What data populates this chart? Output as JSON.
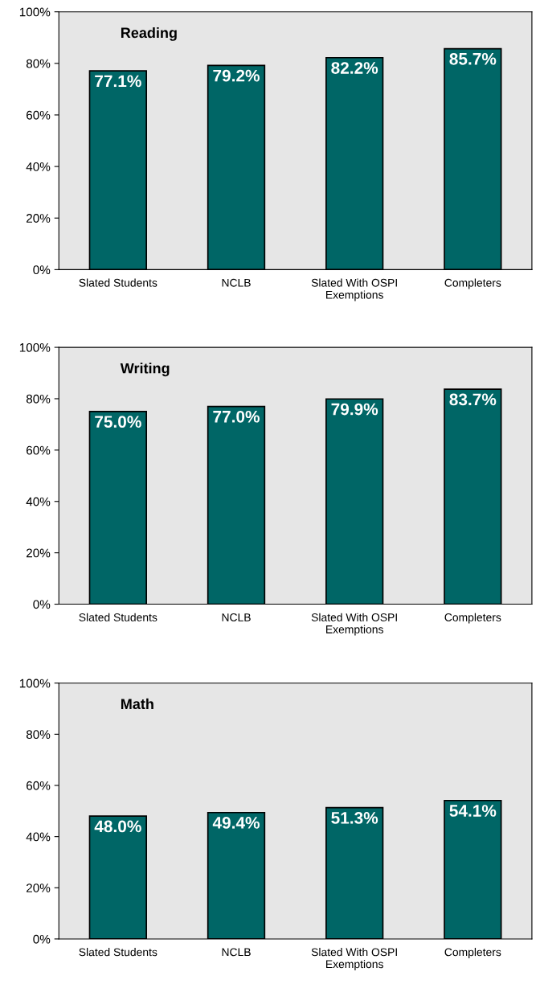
{
  "chart_data": [
    {
      "type": "bar",
      "title": "Reading",
      "categories": [
        "Slated Students",
        "NCLB",
        "Slated With OSPI\nExemptions",
        "Completers"
      ],
      "values": [
        77.1,
        79.2,
        82.2,
        85.7
      ],
      "value_labels": [
        "77.1%",
        "79.2%",
        "82.2%",
        "85.7%"
      ],
      "color": "#006666",
      "ylim": [
        0,
        100
      ],
      "yticks": [
        {
          "value": 0,
          "label": "0%"
        },
        {
          "value": 20,
          "label": "20%"
        },
        {
          "value": 40,
          "label": "40%"
        },
        {
          "value": 60,
          "label": "60%"
        },
        {
          "value": 80,
          "label": "80%"
        },
        {
          "value": 100,
          "label": "100%"
        }
      ]
    },
    {
      "type": "bar",
      "title": "Writing",
      "categories": [
        "Slated Students",
        "NCLB",
        "Slated With OSPI\nExemptions",
        "Completers"
      ],
      "values": [
        75.0,
        77.0,
        79.9,
        83.7
      ],
      "value_labels": [
        "75.0%",
        "77.0%",
        "79.9%",
        "83.7%"
      ],
      "color": "#006666",
      "ylim": [
        0,
        100
      ],
      "yticks": [
        {
          "value": 0,
          "label": "0%"
        },
        {
          "value": 20,
          "label": "20%"
        },
        {
          "value": 40,
          "label": "40%"
        },
        {
          "value": 60,
          "label": "60%"
        },
        {
          "value": 80,
          "label": "80%"
        },
        {
          "value": 100,
          "label": "100%"
        }
      ]
    },
    {
      "type": "bar",
      "title": "Math",
      "categories": [
        "Slated Students",
        "NCLB",
        "Slated With OSPI\nExemptions",
        "Completers"
      ],
      "values": [
        48.0,
        49.4,
        51.3,
        54.1
      ],
      "value_labels": [
        "48.0%",
        "49.4%",
        "51.3%",
        "54.1%"
      ],
      "color": "#006666",
      "ylim": [
        0,
        100
      ],
      "yticks": [
        {
          "value": 0,
          "label": "0%"
        },
        {
          "value": 20,
          "label": "20%"
        },
        {
          "value": 40,
          "label": "40%"
        },
        {
          "value": 60,
          "label": "60%"
        },
        {
          "value": 80,
          "label": "80%"
        },
        {
          "value": 100,
          "label": "100%"
        }
      ]
    }
  ]
}
